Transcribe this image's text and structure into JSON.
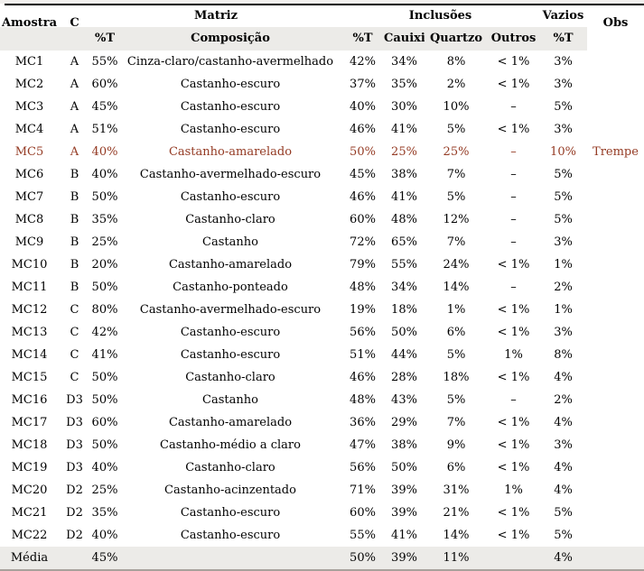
{
  "colors": {
    "highlight_text": "#943a23",
    "header_band_bg": "#ecebe8",
    "footer_band_bg": "#ecebe8",
    "top_rule": "#000000",
    "bottom_rule": "#a8a29c",
    "page_margin_bg": "#f2f0ee"
  },
  "table": {
    "header": {
      "row1": {
        "amostra": "Amostra",
        "classe": "C",
        "matriz": "Matriz",
        "inclusoes": "Inclusões",
        "vazios": "Vazios",
        "obs": "Obs"
      },
      "row2": {
        "matriz_pct": "%T",
        "composicao": "Composição",
        "inclusoes_pct": "%T",
        "cauixi": "Cauixi",
        "quartzo": "Quartzo",
        "outros": "Outros",
        "vazios_pct": "%T"
      }
    },
    "rows": [
      {
        "amostra": "MC1",
        "classe": "A",
        "matriz_pct": "55%",
        "composicao": "Cinza-claro/castanho-avermelhado",
        "inclusoes_pct": "42%",
        "cauixi": "34%",
        "quartzo": "8%",
        "outros": "< 1%",
        "vazios_pct": "3%",
        "obs": "",
        "highlight": false
      },
      {
        "amostra": "MC2",
        "classe": "A",
        "matriz_pct": "60%",
        "composicao": "Castanho-escuro",
        "inclusoes_pct": "37%",
        "cauixi": "35%",
        "quartzo": "2%",
        "outros": "< 1%",
        "vazios_pct": "3%",
        "obs": "",
        "highlight": false
      },
      {
        "amostra": "MC3",
        "classe": "A",
        "matriz_pct": "45%",
        "composicao": "Castanho-escuro",
        "inclusoes_pct": "40%",
        "cauixi": "30%",
        "quartzo": "10%",
        "outros": "–",
        "vazios_pct": "5%",
        "obs": "",
        "highlight": false
      },
      {
        "amostra": "MC4",
        "classe": "A",
        "matriz_pct": "51%",
        "composicao": "Castanho-escuro",
        "inclusoes_pct": "46%",
        "cauixi": "41%",
        "quartzo": "5%",
        "outros": "< 1%",
        "vazios_pct": "3%",
        "obs": "",
        "highlight": false
      },
      {
        "amostra": "MC5",
        "classe": "A",
        "matriz_pct": "40%",
        "composicao": "Castanho-amarelado",
        "inclusoes_pct": "50%",
        "cauixi": "25%",
        "quartzo": "25%",
        "outros": "–",
        "vazios_pct": "10%",
        "obs": "Trempe",
        "highlight": true
      },
      {
        "amostra": "MC6",
        "classe": "B",
        "matriz_pct": "40%",
        "composicao": "Castanho-avermelhado-escuro",
        "inclusoes_pct": "45%",
        "cauixi": "38%",
        "quartzo": "7%",
        "outros": "–",
        "vazios_pct": "5%",
        "obs": "",
        "highlight": false
      },
      {
        "amostra": "MC7",
        "classe": "B",
        "matriz_pct": "50%",
        "composicao": "Castanho-escuro",
        "inclusoes_pct": "46%",
        "cauixi": "41%",
        "quartzo": "5%",
        "outros": "–",
        "vazios_pct": "5%",
        "obs": "",
        "highlight": false
      },
      {
        "amostra": "MC8",
        "classe": "B",
        "matriz_pct": "35%",
        "composicao": "Castanho-claro",
        "inclusoes_pct": "60%",
        "cauixi": "48%",
        "quartzo": "12%",
        "outros": "–",
        "vazios_pct": "5%",
        "obs": "",
        "highlight": false
      },
      {
        "amostra": "MC9",
        "classe": "B",
        "matriz_pct": "25%",
        "composicao": "Castanho",
        "inclusoes_pct": "72%",
        "cauixi": "65%",
        "quartzo": "7%",
        "outros": "–",
        "vazios_pct": "3%",
        "obs": "",
        "highlight": false
      },
      {
        "amostra": "MC10",
        "classe": "B",
        "matriz_pct": "20%",
        "composicao": "Castanho-amarelado",
        "inclusoes_pct": "79%",
        "cauixi": "55%",
        "quartzo": "24%",
        "outros": "< 1%",
        "vazios_pct": "1%",
        "obs": "",
        "highlight": false
      },
      {
        "amostra": "MC11",
        "classe": "B",
        "matriz_pct": "50%",
        "composicao": "Castanho-ponteado",
        "inclusoes_pct": "48%",
        "cauixi": "34%",
        "quartzo": "14%",
        "outros": "–",
        "vazios_pct": "2%",
        "obs": "",
        "highlight": false
      },
      {
        "amostra": "MC12",
        "classe": "C",
        "matriz_pct": "80%",
        "composicao": "Castanho-avermelhado-escuro",
        "inclusoes_pct": "19%",
        "cauixi": "18%",
        "quartzo": "1%",
        "outros": "< 1%",
        "vazios_pct": "1%",
        "obs": "",
        "highlight": false
      },
      {
        "amostra": "MC13",
        "classe": "C",
        "matriz_pct": "42%",
        "composicao": "Castanho-escuro",
        "inclusoes_pct": "56%",
        "cauixi": "50%",
        "quartzo": "6%",
        "outros": "< 1%",
        "vazios_pct": "3%",
        "obs": "",
        "highlight": false
      },
      {
        "amostra": "MC14",
        "classe": "C",
        "matriz_pct": "41%",
        "composicao": "Castanho-escuro",
        "inclusoes_pct": "51%",
        "cauixi": "44%",
        "quartzo": "5%",
        "outros": "1%",
        "vazios_pct": "8%",
        "obs": "",
        "highlight": false
      },
      {
        "amostra": "MC15",
        "classe": "C",
        "matriz_pct": "50%",
        "composicao": "Castanho-claro",
        "inclusoes_pct": "46%",
        "cauixi": "28%",
        "quartzo": "18%",
        "outros": "< 1%",
        "vazios_pct": "4%",
        "obs": "",
        "highlight": false
      },
      {
        "amostra": "MC16",
        "classe": "D3",
        "matriz_pct": "50%",
        "composicao": "Castanho",
        "inclusoes_pct": "48%",
        "cauixi": "43%",
        "quartzo": "5%",
        "outros": "–",
        "vazios_pct": "2%",
        "obs": "",
        "highlight": false
      },
      {
        "amostra": "MC17",
        "classe": "D3",
        "matriz_pct": "60%",
        "composicao": "Castanho-amarelado",
        "inclusoes_pct": "36%",
        "cauixi": "29%",
        "quartzo": "7%",
        "outros": "< 1%",
        "vazios_pct": "4%",
        "obs": "",
        "highlight": false
      },
      {
        "amostra": "MC18",
        "classe": "D3",
        "matriz_pct": "50%",
        "composicao": "Castanho-médio a claro",
        "inclusoes_pct": "47%",
        "cauixi": "38%",
        "quartzo": "9%",
        "outros": "< 1%",
        "vazios_pct": "3%",
        "obs": "",
        "highlight": false
      },
      {
        "amostra": "MC19",
        "classe": "D3",
        "matriz_pct": "40%",
        "composicao": "Castanho-claro",
        "inclusoes_pct": "56%",
        "cauixi": "50%",
        "quartzo": "6%",
        "outros": "< 1%",
        "vazios_pct": "4%",
        "obs": "",
        "highlight": false
      },
      {
        "amostra": "MC20",
        "classe": "D2",
        "matriz_pct": "25%",
        "composicao": "Castanho-acinzentado",
        "inclusoes_pct": "71%",
        "cauixi": "39%",
        "quartzo": "31%",
        "outros": "1%",
        "vazios_pct": "4%",
        "obs": "",
        "highlight": false
      },
      {
        "amostra": "MC21",
        "classe": "D2",
        "matriz_pct": "35%",
        "composicao": "Castanho-escuro",
        "inclusoes_pct": "60%",
        "cauixi": "39%",
        "quartzo": "21%",
        "outros": "< 1%",
        "vazios_pct": "5%",
        "obs": "",
        "highlight": false
      },
      {
        "amostra": "MC22",
        "classe": "D2",
        "matriz_pct": "40%",
        "composicao": "Castanho-escuro",
        "inclusoes_pct": "55%",
        "cauixi": "41%",
        "quartzo": "14%",
        "outros": "< 1%",
        "vazios_pct": "5%",
        "obs": "",
        "highlight": false
      }
    ],
    "footer_row": {
      "amostra": "Média",
      "classe": "",
      "matriz_pct": "45%",
      "composicao": "",
      "inclusoes_pct": "50%",
      "cauixi": "39%",
      "quartzo": "11%",
      "outros": "",
      "vazios_pct": "4%",
      "obs": ""
    }
  }
}
